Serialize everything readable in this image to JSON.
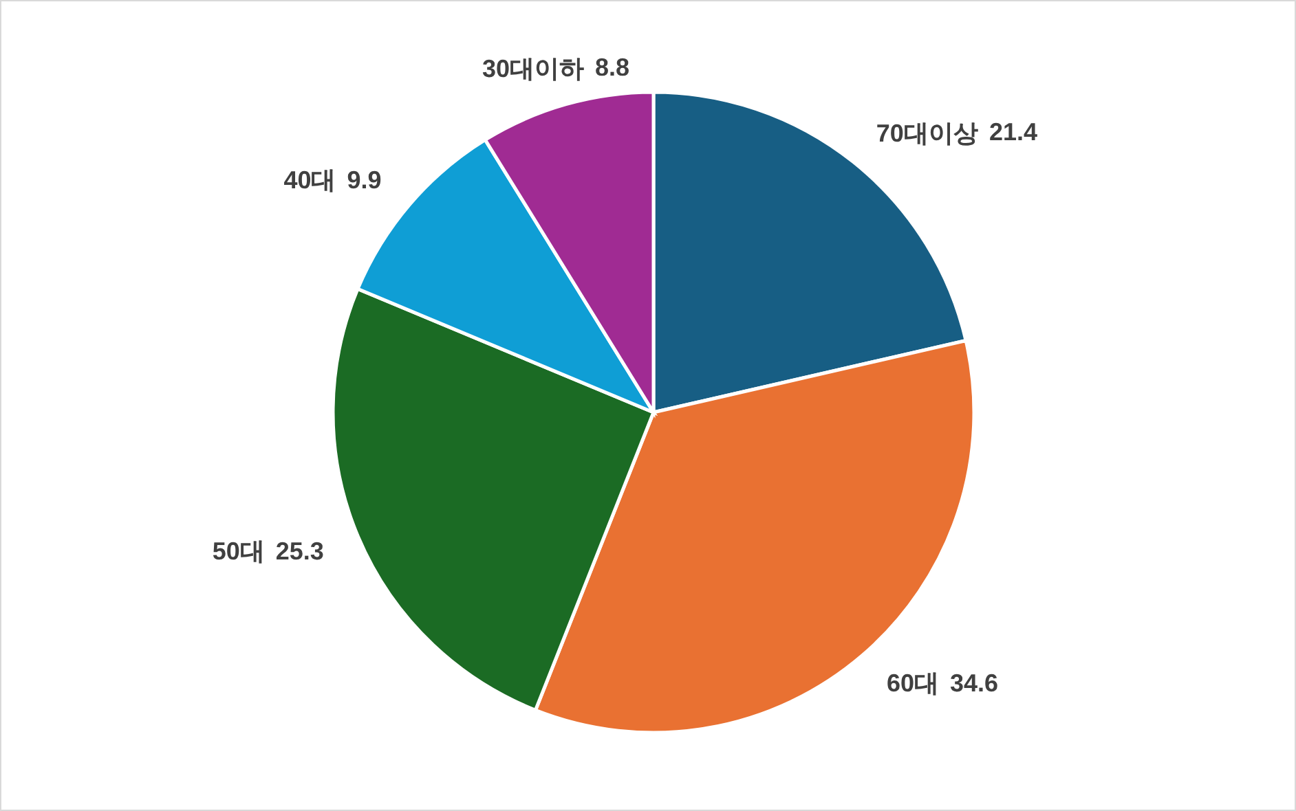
{
  "chart_data": {
    "type": "pie",
    "categories": [
      "70대이상",
      "60대",
      "50대",
      "40대",
      "30대이하"
    ],
    "values": [
      21.4,
      34.6,
      25.3,
      9.9,
      8.8
    ],
    "colors": [
      "#175e84",
      "#e97132",
      "#1b6b24",
      "#0f9ed5",
      "#a02b93"
    ],
    "data_labels": true,
    "legend": false
  }
}
